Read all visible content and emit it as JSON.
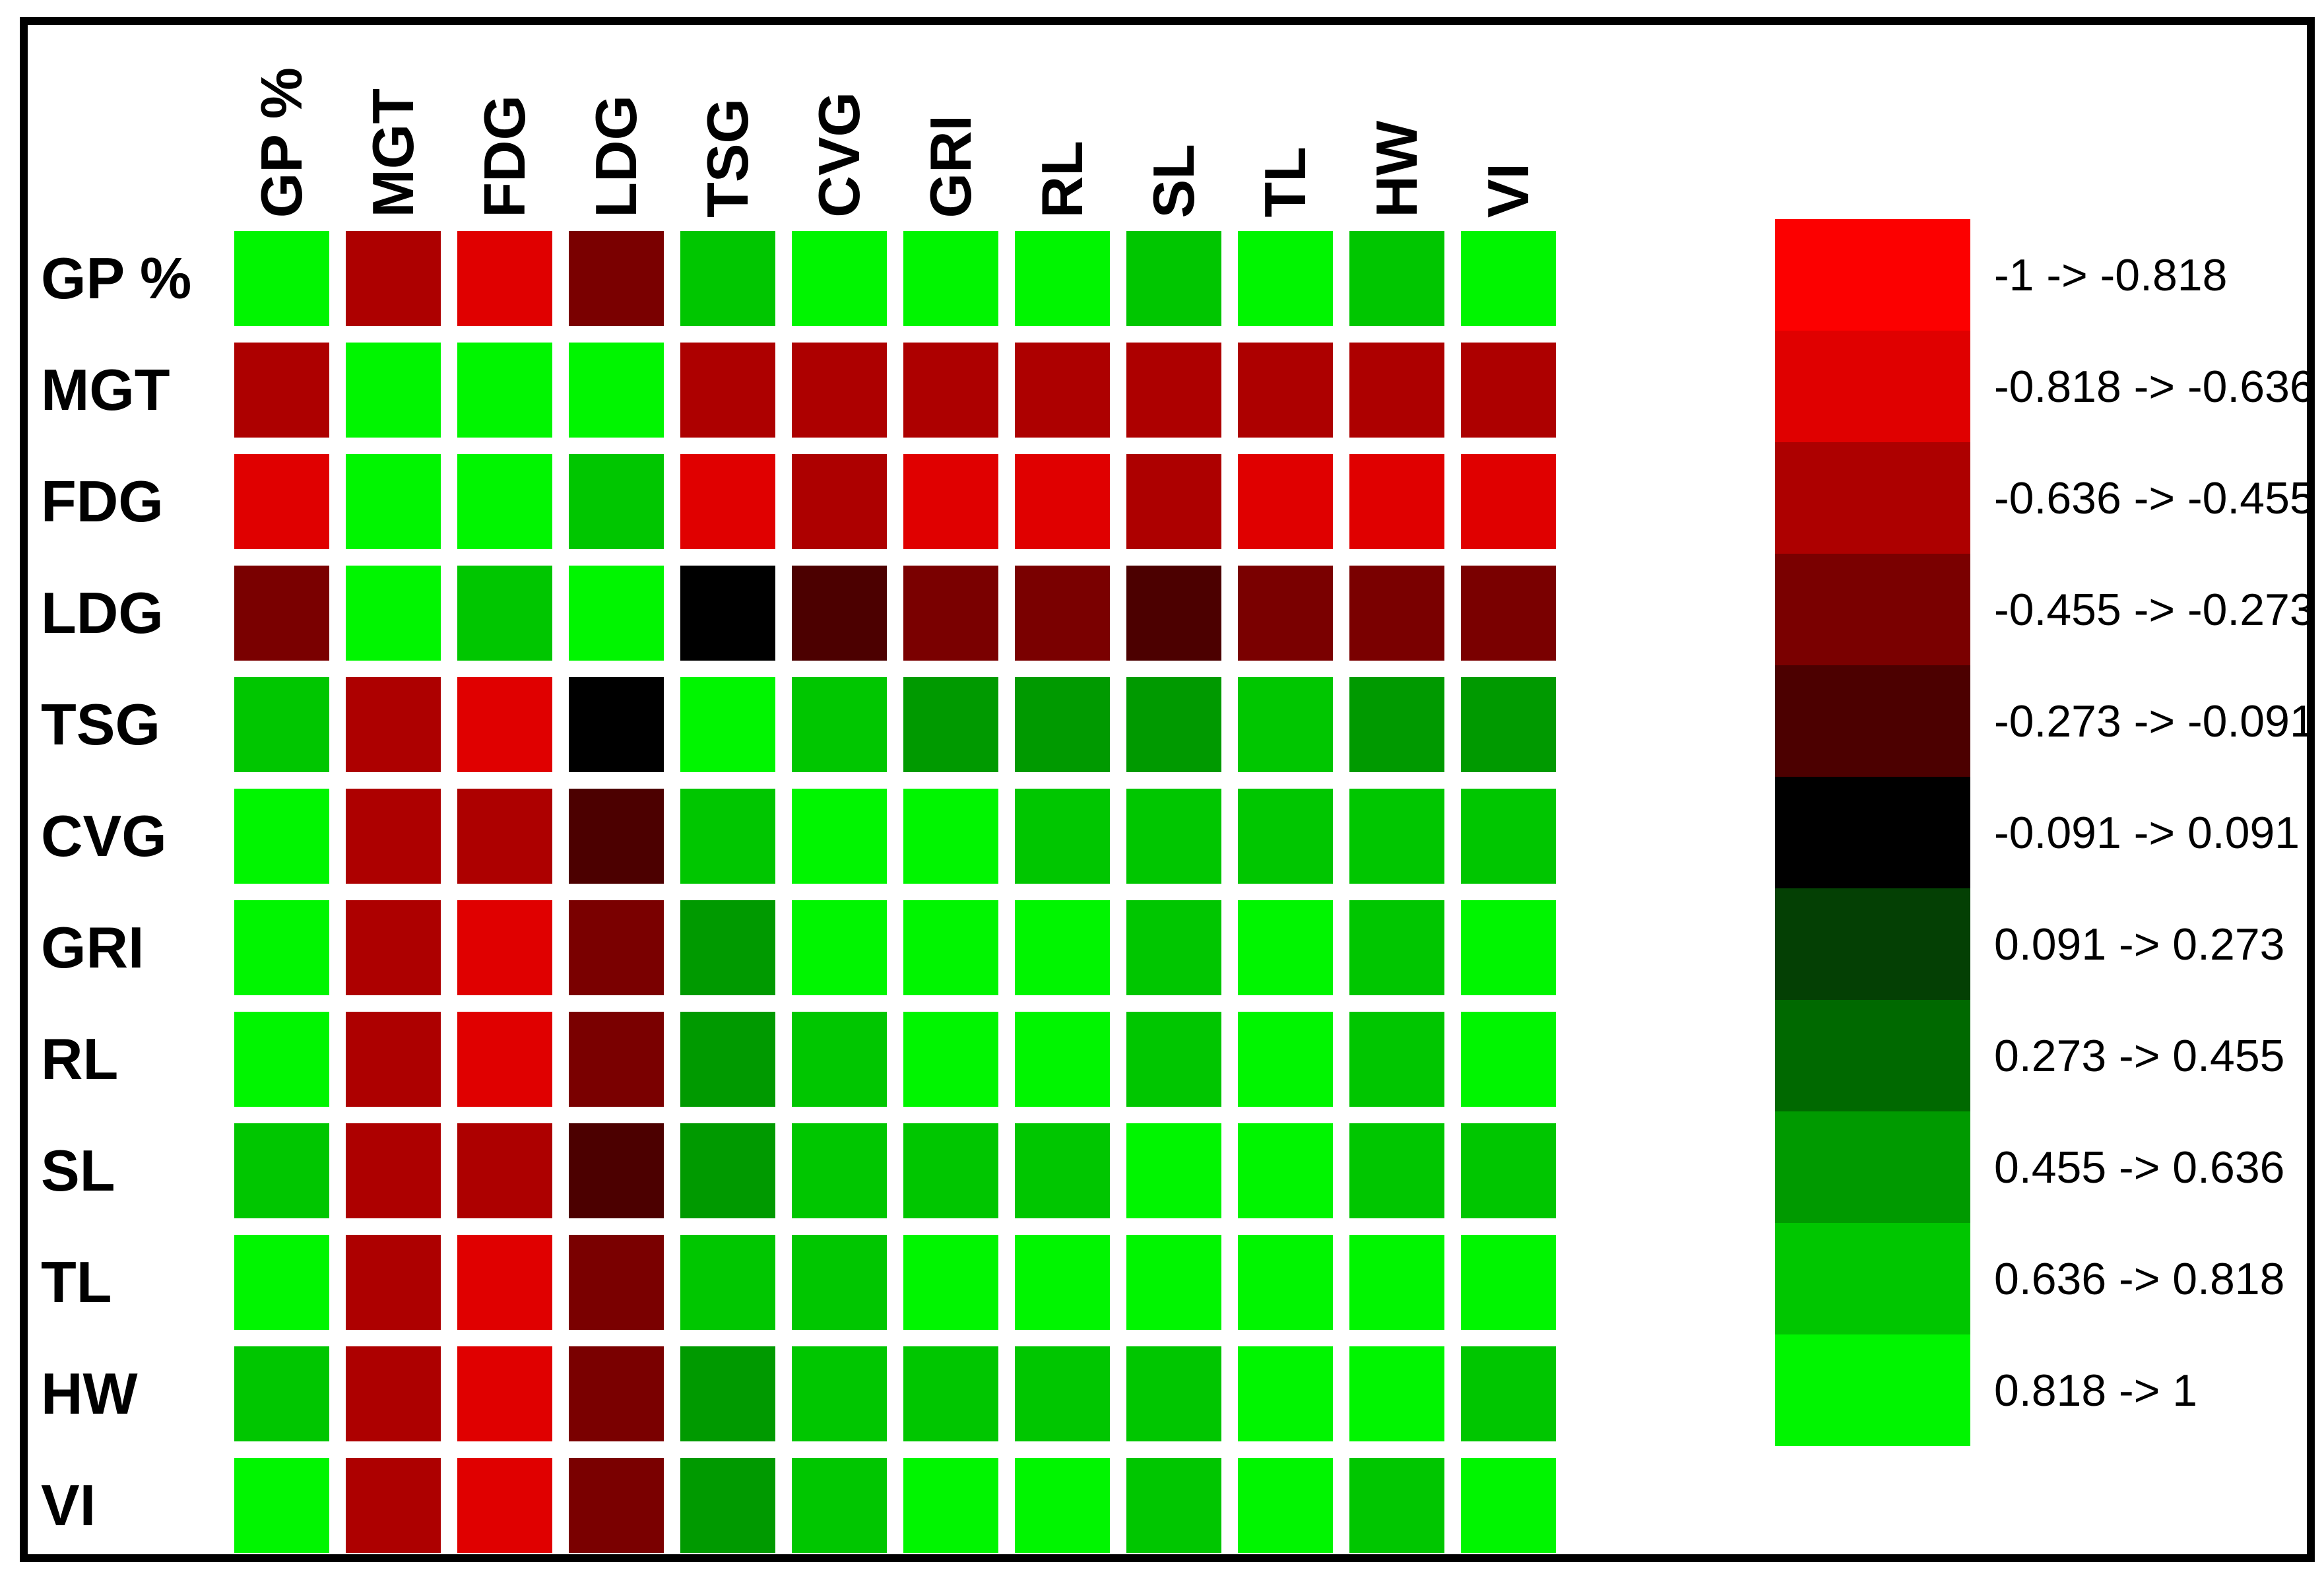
{
  "figure": {
    "background": "#FFFFFF",
    "border_color": "#000000"
  },
  "chart_data": {
    "type": "heatmap",
    "x_labels": [
      "GP %",
      "MGT",
      "FDG",
      "LDG",
      "TSG",
      "CVG",
      "GRI",
      "RL",
      "SL",
      "TL",
      "HW",
      "VI"
    ],
    "y_labels": [
      "GP %",
      "MGT",
      "FDG",
      "LDG",
      "TSG",
      "CVG",
      "GRI",
      "RL",
      "SL",
      "TL",
      "HW",
      "VI"
    ],
    "legend": {
      "position": "right",
      "bins": [
        {
          "label": "-1 -> -0.818",
          "color": "#FC0000"
        },
        {
          "label": "-0.818 -> -0.636",
          "color": "#E00000"
        },
        {
          "label": "-0.636 -> -0.455",
          "color": "#AD0000"
        },
        {
          "label": "-0.455 -> -0.273",
          "color": "#7A0000"
        },
        {
          "label": "-0.273 -> -0.091",
          "color": "#4C0000"
        },
        {
          "label": "-0.091 -> 0.091",
          "color": "#000000"
        },
        {
          "label": "0.091 -> 0.273",
          "color": "#044004"
        },
        {
          "label": "0.273 -> 0.455",
          "color": "#006900"
        },
        {
          "label": "0.455 -> 0.636",
          "color": "#009A00"
        },
        {
          "label": "0.636 -> 0.818",
          "color": "#00C600"
        },
        {
          "label": "0.818 -> 1",
          "color": "#00F500"
        }
      ]
    },
    "cell_encoding": "each matrix value is an index into legend.bins",
    "matrix": [
      [
        10,
        2,
        1,
        3,
        9,
        10,
        10,
        10,
        9,
        10,
        9,
        10
      ],
      [
        2,
        10,
        10,
        10,
        2,
        2,
        2,
        2,
        2,
        2,
        2,
        2
      ],
      [
        1,
        10,
        10,
        9,
        1,
        2,
        1,
        1,
        2,
        1,
        1,
        1
      ],
      [
        3,
        10,
        9,
        10,
        5,
        4,
        3,
        3,
        4,
        3,
        3,
        3
      ],
      [
        9,
        2,
        1,
        5,
        10,
        9,
        8,
        8,
        8,
        9,
        8,
        8
      ],
      [
        10,
        2,
        2,
        4,
        9,
        10,
        10,
        9,
        9,
        9,
        9,
        9
      ],
      [
        10,
        2,
        1,
        3,
        8,
        10,
        10,
        10,
        9,
        10,
        9,
        10
      ],
      [
        10,
        2,
        1,
        3,
        8,
        9,
        10,
        10,
        9,
        10,
        9,
        10
      ],
      [
        9,
        2,
        2,
        4,
        8,
        9,
        9,
        9,
        10,
        10,
        9,
        9
      ],
      [
        10,
        2,
        1,
        3,
        9,
        9,
        10,
        10,
        10,
        10,
        10,
        10
      ],
      [
        9,
        2,
        1,
        3,
        8,
        9,
        9,
        9,
        9,
        10,
        10,
        9
      ],
      [
        10,
        2,
        1,
        3,
        8,
        9,
        10,
        10,
        9,
        10,
        9,
        10
      ]
    ]
  }
}
